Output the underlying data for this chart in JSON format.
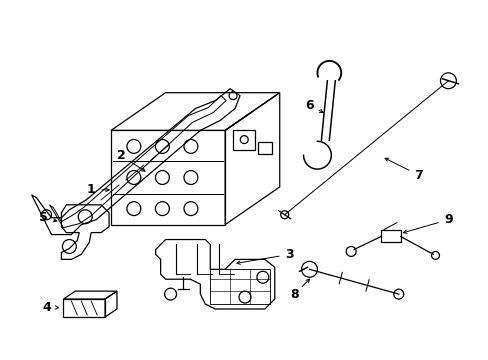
{
  "background_color": "#ffffff",
  "line_color": "#000000",
  "fig_width": 4.89,
  "fig_height": 3.6,
  "dpi": 100,
  "font_size": 9
}
